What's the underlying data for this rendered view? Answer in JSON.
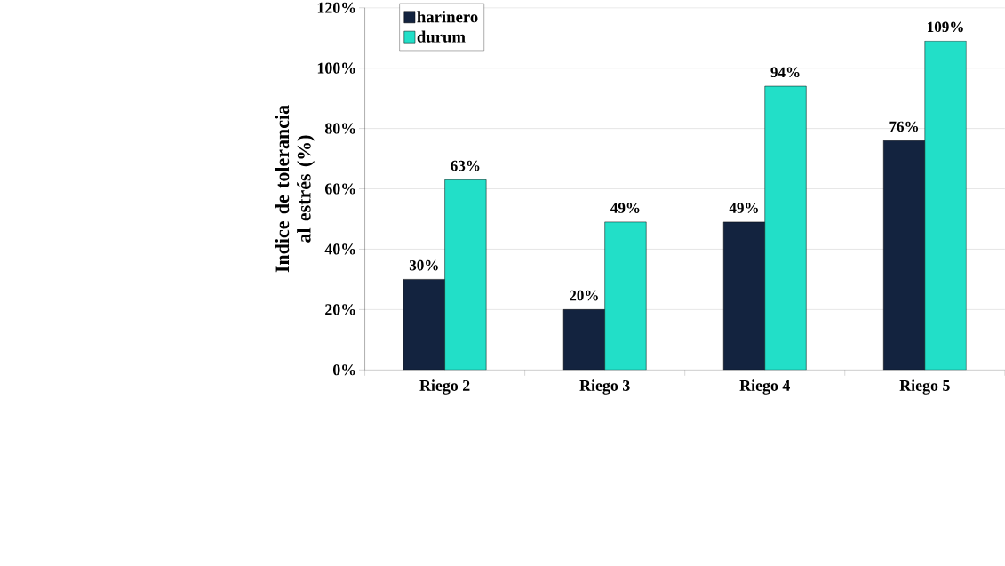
{
  "chart_data": {
    "type": "bar",
    "ylabel": "Indice de tolerancia al estrés (%)",
    "categories": [
      "Riego 2",
      "Riego 3",
      "Riego 4",
      "Riego 5"
    ],
    "series": [
      {
        "name": "harinero",
        "color": "#13233f",
        "values": [
          30,
          20,
          49,
          76
        ],
        "value_labels": [
          "30%",
          "20%",
          "49%",
          "76%"
        ]
      },
      {
        "name": "durum",
        "color": "#22dfc8",
        "values": [
          63,
          49,
          94,
          109
        ],
        "value_labels": [
          "63%",
          "49%",
          "94%",
          "109%"
        ]
      }
    ],
    "ylim": [
      0,
      120
    ],
    "yticks": [
      {
        "value": 0,
        "label": "0%"
      },
      {
        "value": 20,
        "label": "20%"
      },
      {
        "value": 40,
        "label": "40%"
      },
      {
        "value": 60,
        "label": "60%"
      },
      {
        "value": 80,
        "label": "80%"
      },
      {
        "value": 100,
        "label": "100%"
      },
      {
        "value": 120,
        "label": "120%"
      }
    ],
    "grid": "y",
    "legend": "top left"
  }
}
